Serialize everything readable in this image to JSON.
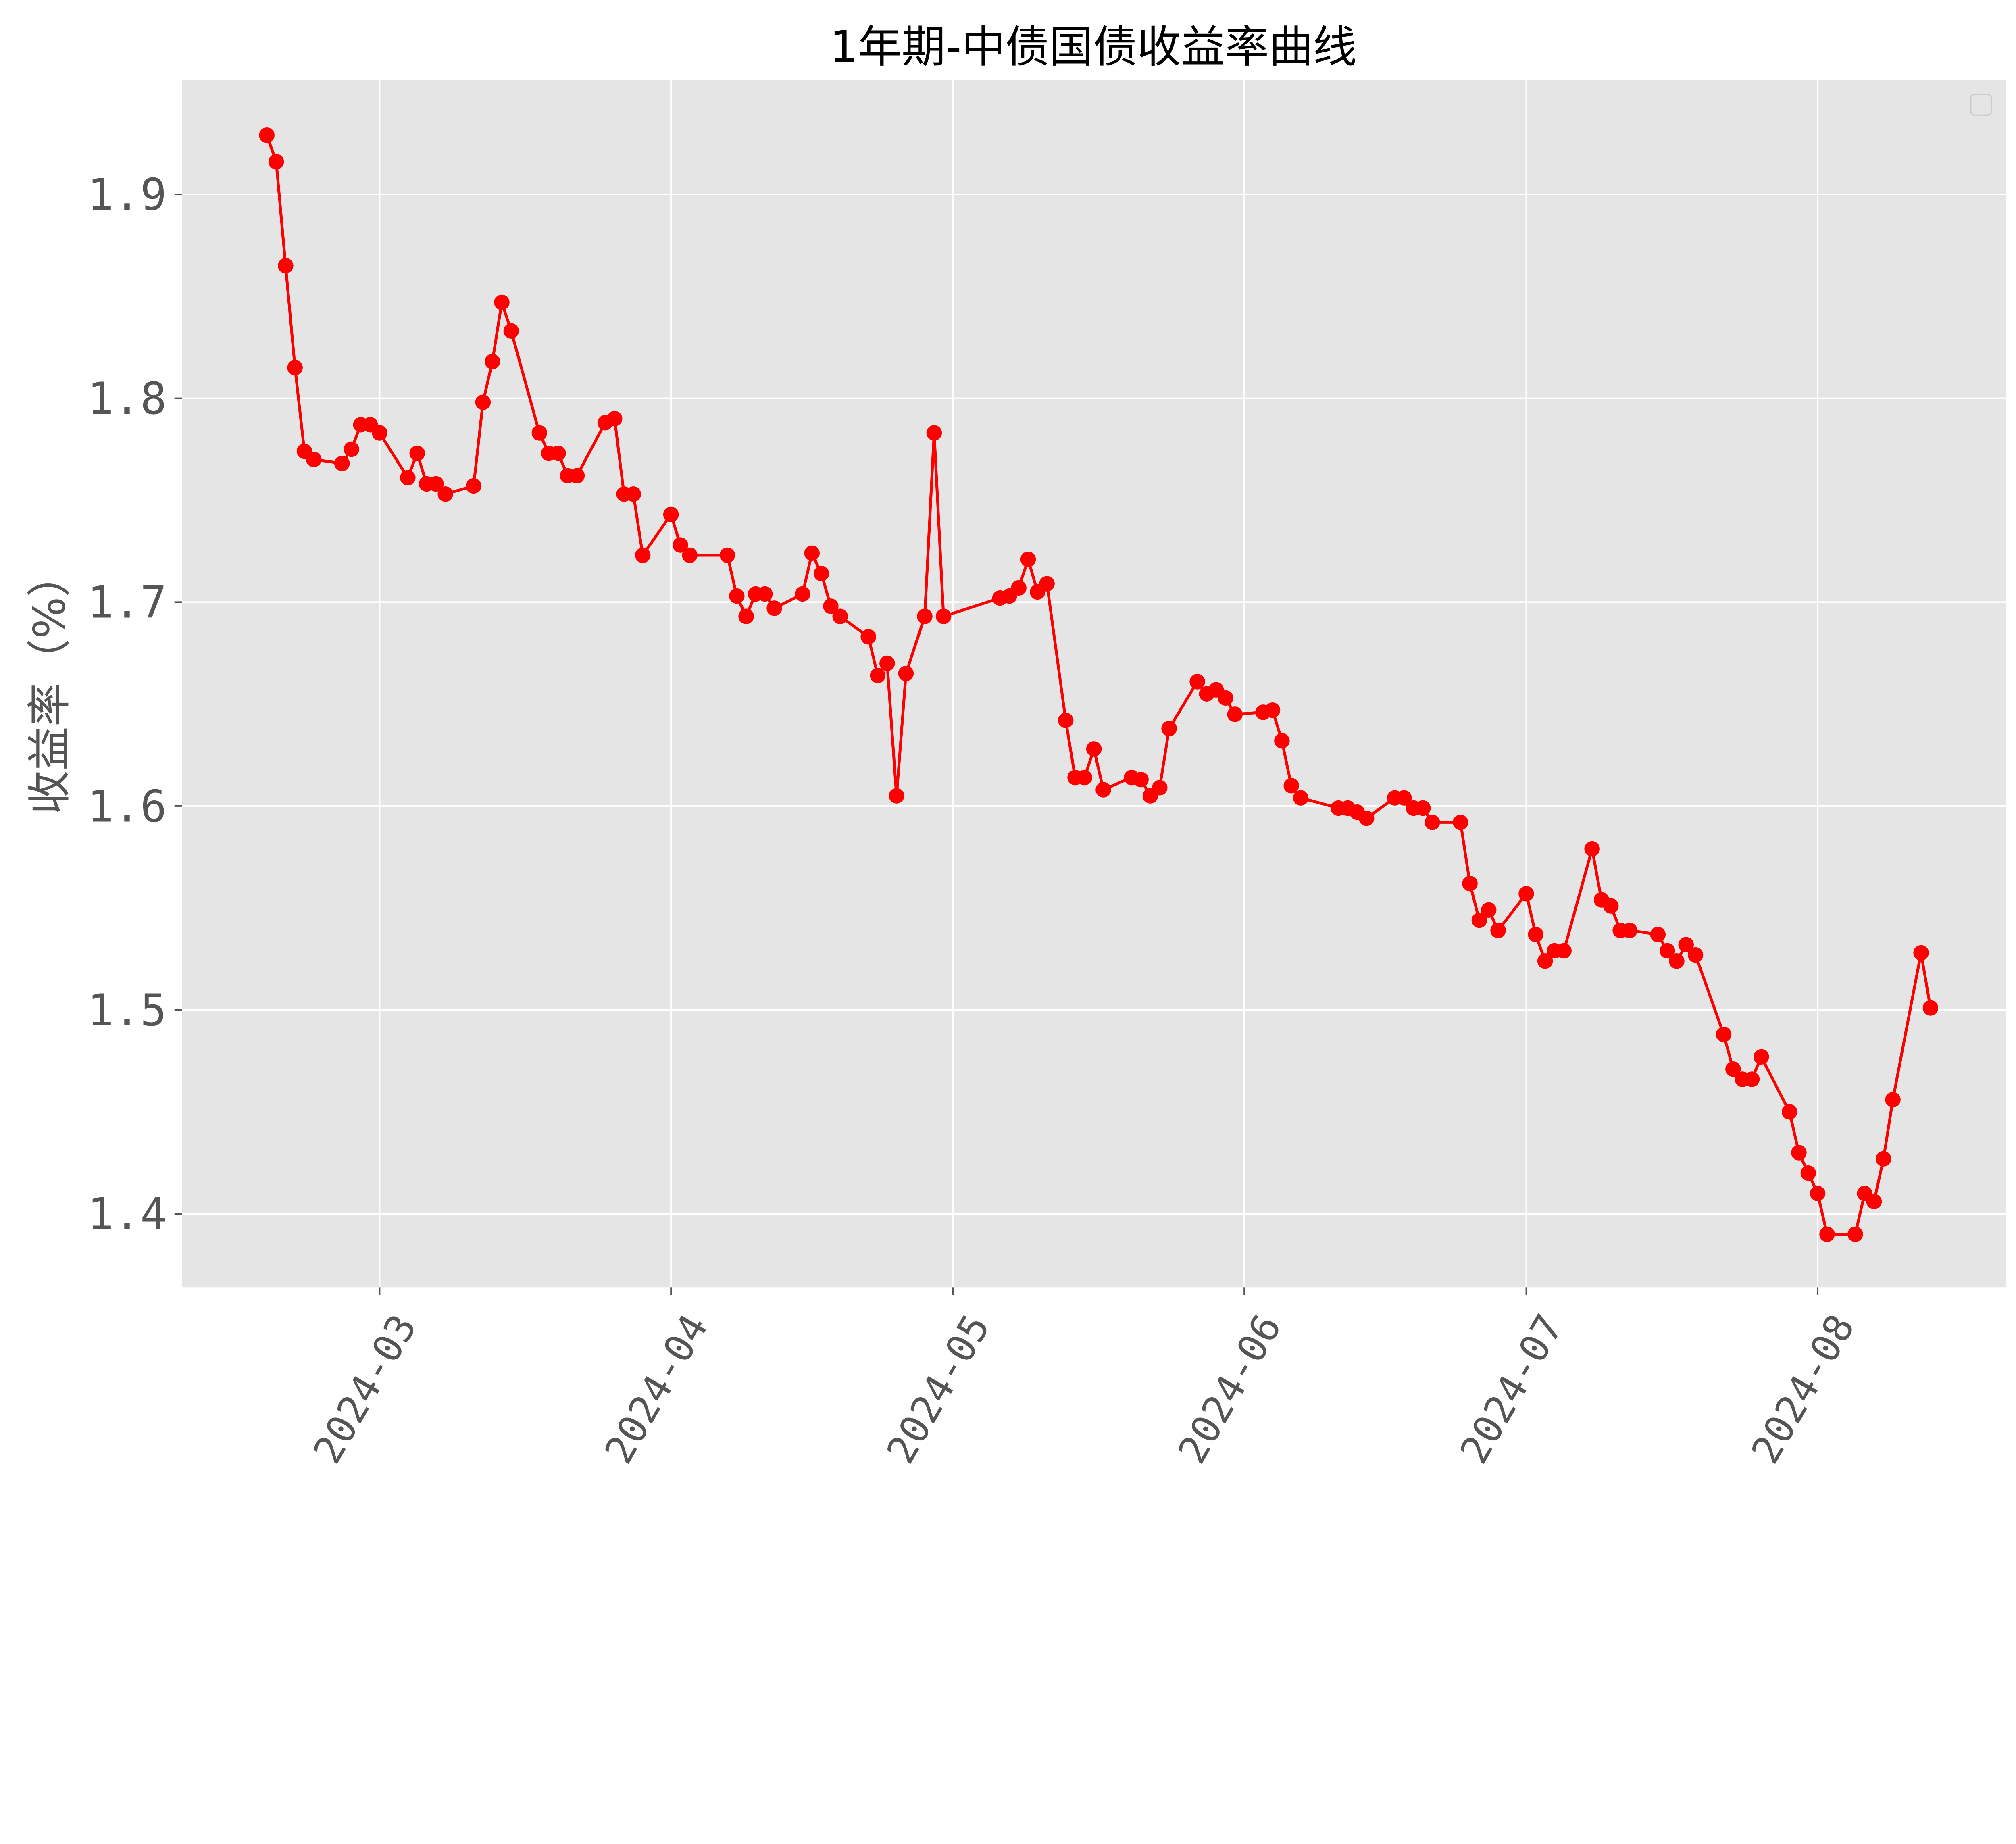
{
  "chart_data": {
    "type": "line",
    "title": "1年期-中债国债收益率曲线",
    "xlabel": "",
    "ylabel": "收益率（%）",
    "ylim": [
      1.364,
      1.956
    ],
    "xlim": [
      "2024-02-09",
      "2024-08-21"
    ],
    "grid": true,
    "legend": "top-right (empty)",
    "background": "#e5e5e5",
    "line_color": "#ff0000",
    "marker": "circle",
    "x_ticks": [
      "2024-03",
      "2024-04",
      "2024-05",
      "2024-06",
      "2024-07",
      "2024-08"
    ],
    "y_ticks": [
      "1.4",
      "1.5",
      "1.6",
      "1.7",
      "1.8",
      "1.9"
    ],
    "series": [
      {
        "x": [
          "2024-02-18",
          "2024-02-19",
          "2024-02-20",
          "2024-02-21",
          "2024-02-22",
          "2024-02-23",
          "2024-02-26",
          "2024-02-27",
          "2024-02-28",
          "2024-02-29",
          "2024-03-01",
          "2024-03-04",
          "2024-03-05",
          "2024-03-06",
          "2024-03-07",
          "2024-03-08",
          "2024-03-11",
          "2024-03-12",
          "2024-03-13",
          "2024-03-14",
          "2024-03-15",
          "2024-03-18",
          "2024-03-19",
          "2024-03-20",
          "2024-03-21",
          "2024-03-22",
          "2024-03-25",
          "2024-03-26",
          "2024-03-27",
          "2024-03-28",
          "2024-03-29",
          "2024-04-01",
          "2024-04-02",
          "2024-04-03",
          "2024-04-07",
          "2024-04-08",
          "2024-04-09",
          "2024-04-10",
          "2024-04-11",
          "2024-04-12",
          "2024-04-15",
          "2024-04-16",
          "2024-04-17",
          "2024-04-18",
          "2024-04-19",
          "2024-04-22",
          "2024-04-23",
          "2024-04-24",
          "2024-04-25",
          "2024-04-26",
          "2024-04-28",
          "2024-04-29",
          "2024-04-30",
          "2024-05-06",
          "2024-05-07",
          "2024-05-08",
          "2024-05-09",
          "2024-05-10",
          "2024-05-11",
          "2024-05-13",
          "2024-05-14",
          "2024-05-15",
          "2024-05-16",
          "2024-05-17",
          "2024-05-20",
          "2024-05-21",
          "2024-05-22",
          "2024-05-23",
          "2024-05-24",
          "2024-05-27",
          "2024-05-28",
          "2024-05-29",
          "2024-05-30",
          "2024-05-31",
          "2024-06-03",
          "2024-06-04",
          "2024-06-05",
          "2024-06-06",
          "2024-06-07",
          "2024-06-11",
          "2024-06-12",
          "2024-06-13",
          "2024-06-14",
          "2024-06-17",
          "2024-06-18",
          "2024-06-19",
          "2024-06-20",
          "2024-06-21",
          "2024-06-24",
          "2024-06-25",
          "2024-06-26",
          "2024-06-27",
          "2024-06-28",
          "2024-07-01",
          "2024-07-02",
          "2024-07-03",
          "2024-07-04",
          "2024-07-05",
          "2024-07-08",
          "2024-07-09",
          "2024-07-10",
          "2024-07-11",
          "2024-07-12",
          "2024-07-15",
          "2024-07-16",
          "2024-07-17",
          "2024-07-18",
          "2024-07-19",
          "2024-07-22",
          "2024-07-23",
          "2024-07-24",
          "2024-07-25",
          "2024-07-26",
          "2024-07-29",
          "2024-07-30",
          "2024-07-31",
          "2024-08-01",
          "2024-08-02",
          "2024-08-05",
          "2024-08-06",
          "2024-08-07",
          "2024-08-08",
          "2024-08-09",
          "2024-08-12",
          "2024-08-13"
        ],
        "values": [
          1.929,
          1.916,
          1.865,
          1.815,
          1.774,
          1.77,
          1.768,
          1.775,
          1.787,
          1.787,
          1.783,
          1.761,
          1.773,
          1.758,
          1.758,
          1.753,
          1.757,
          1.798,
          1.818,
          1.847,
          1.833,
          1.783,
          1.773,
          1.773,
          1.762,
          1.762,
          1.788,
          1.79,
          1.753,
          1.753,
          1.723,
          1.743,
          1.728,
          1.723,
          1.723,
          1.703,
          1.693,
          1.704,
          1.704,
          1.697,
          1.704,
          1.724,
          1.714,
          1.698,
          1.693,
          1.683,
          1.664,
          1.67,
          1.605,
          1.665,
          1.693,
          1.783,
          1.693,
          1.702,
          1.703,
          1.707,
          1.721,
          1.705,
          1.709,
          1.642,
          1.614,
          1.614,
          1.628,
          1.608,
          1.614,
          1.613,
          1.605,
          1.609,
          1.638,
          1.661,
          1.655,
          1.657,
          1.653,
          1.645,
          1.646,
          1.647,
          1.632,
          1.61,
          1.604,
          1.599,
          1.599,
          1.597,
          1.594,
          1.604,
          1.604,
          1.599,
          1.599,
          1.592,
          1.592,
          1.562,
          1.544,
          1.549,
          1.539,
          1.557,
          1.537,
          1.524,
          1.529,
          1.529,
          1.579,
          1.554,
          1.551,
          1.539,
          1.539,
          1.537,
          1.529,
          1.524,
          1.532,
          1.527,
          1.488,
          1.471,
          1.466,
          1.466,
          1.477,
          1.45,
          1.43,
          1.42,
          1.41,
          1.39,
          1.39,
          1.41,
          1.406,
          1.427,
          1.456,
          1.528,
          1.501
        ]
      }
    ]
  }
}
